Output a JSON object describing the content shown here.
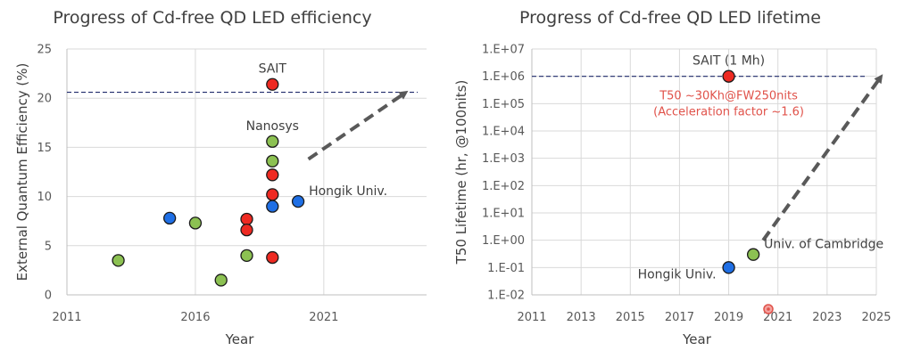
{
  "colors": {
    "red": "#ee2a22",
    "blue": "#1f6fe5",
    "green": "#8cc152",
    "grid": "#d9d9d9",
    "dash_line": "#1f2a6b",
    "arrow": "#595959",
    "annot_red": "#e0524a"
  },
  "chart_data": [
    {
      "type": "scatter",
      "title": "Progress of Cd-free QD LED efficiency",
      "xlabel": "Year",
      "ylabel": "External Quantum Efficiency (%)",
      "xlim": [
        2011,
        2025
      ],
      "ylim": [
        0,
        25
      ],
      "xticks": [
        2011,
        2016,
        2021
      ],
      "yticks": [
        0,
        5,
        10,
        15,
        20,
        25
      ],
      "grid": true,
      "reference_line": {
        "y": 20.6,
        "style": "dashed"
      },
      "series": [
        {
          "color_key": "green",
          "points": [
            [
              2013.0,
              3.5
            ],
            [
              2016.0,
              7.3
            ],
            [
              2017.0,
              1.5
            ],
            [
              2018.0,
              4.0
            ],
            [
              2019.0,
              13.6
            ],
            [
              2019.0,
              15.6
            ]
          ]
        },
        {
          "color_key": "blue",
          "points": [
            [
              2015.0,
              7.8
            ],
            [
              2019.0,
              9.0
            ],
            [
              2020.0,
              9.5
            ]
          ]
        },
        {
          "color_key": "red",
          "points": [
            [
              2018.0,
              7.7
            ],
            [
              2018.0,
              6.6
            ],
            [
              2019.0,
              3.8
            ],
            [
              2019.0,
              10.2
            ],
            [
              2019.0,
              12.2
            ],
            [
              2019.0,
              21.4
            ]
          ]
        }
      ],
      "trend_arrow": {
        "from": [
          2020.4,
          13.8
        ],
        "to": [
          2024.2,
          20.6
        ]
      },
      "annotations": [
        {
          "text": "SAIT",
          "x": 2019.0,
          "y": 21.4,
          "anchor": "above"
        },
        {
          "text": "Nanosys",
          "x": 2019.0,
          "y": 15.6,
          "anchor": "above"
        },
        {
          "text": "Hongik Univ.",
          "x": 2020.0,
          "y": 9.5,
          "anchor": "above-right"
        }
      ]
    },
    {
      "type": "scatter",
      "title": "Progress of Cd-free QD LED lifetime",
      "xlabel": "Year",
      "ylabel": "T50 Lifetime (hr, @100nits)",
      "xlim": [
        2011,
        2025
      ],
      "ylim": [
        0.01,
        10000000
      ],
      "yscale": "log",
      "xticks": [
        2011,
        2013,
        2015,
        2017,
        2019,
        2021,
        2023,
        2025
      ],
      "yticks": [
        "1.E-02",
        "1.E-01",
        "1.E+00",
        "1.E+01",
        "1.E+02",
        "1.E+03",
        "1.E+04",
        "1.E+05",
        "1.E+06",
        "1.E+07"
      ],
      "grid": true,
      "reference_line": {
        "y": 1000000,
        "style": "dashed"
      },
      "series": [
        {
          "color_key": "red",
          "points": [
            [
              2019,
              1000000
            ]
          ]
        },
        {
          "color_key": "green",
          "points": [
            [
              2020,
              0.3
            ]
          ]
        },
        {
          "color_key": "blue",
          "points": [
            [
              2019,
              0.1
            ]
          ]
        }
      ],
      "trend_arrow": {
        "from": [
          2020.4,
          1.0
        ],
        "to": [
          2025.2,
          1000000
        ]
      },
      "annotations": [
        {
          "text": "SAIT (1 Mh)",
          "x": 2019,
          "y": 1000000,
          "anchor": "above",
          "style": "normal"
        },
        {
          "text": "T50 ~30Kh@FW250nits",
          "x": 2019,
          "y": 1000000,
          "anchor": "below-1",
          "style": "red"
        },
        {
          "text": "(Acceleration factor ~1.6)",
          "x": 2019,
          "y": 1000000,
          "anchor": "below-2",
          "style": "red"
        },
        {
          "text": "Univ. of Cambridge",
          "x": 2020,
          "y": 0.3,
          "anchor": "above-right",
          "style": "normal"
        },
        {
          "text": "Hongik Univ.",
          "x": 2019,
          "y": 0.1,
          "anchor": "left",
          "style": "normal"
        }
      ]
    }
  ]
}
